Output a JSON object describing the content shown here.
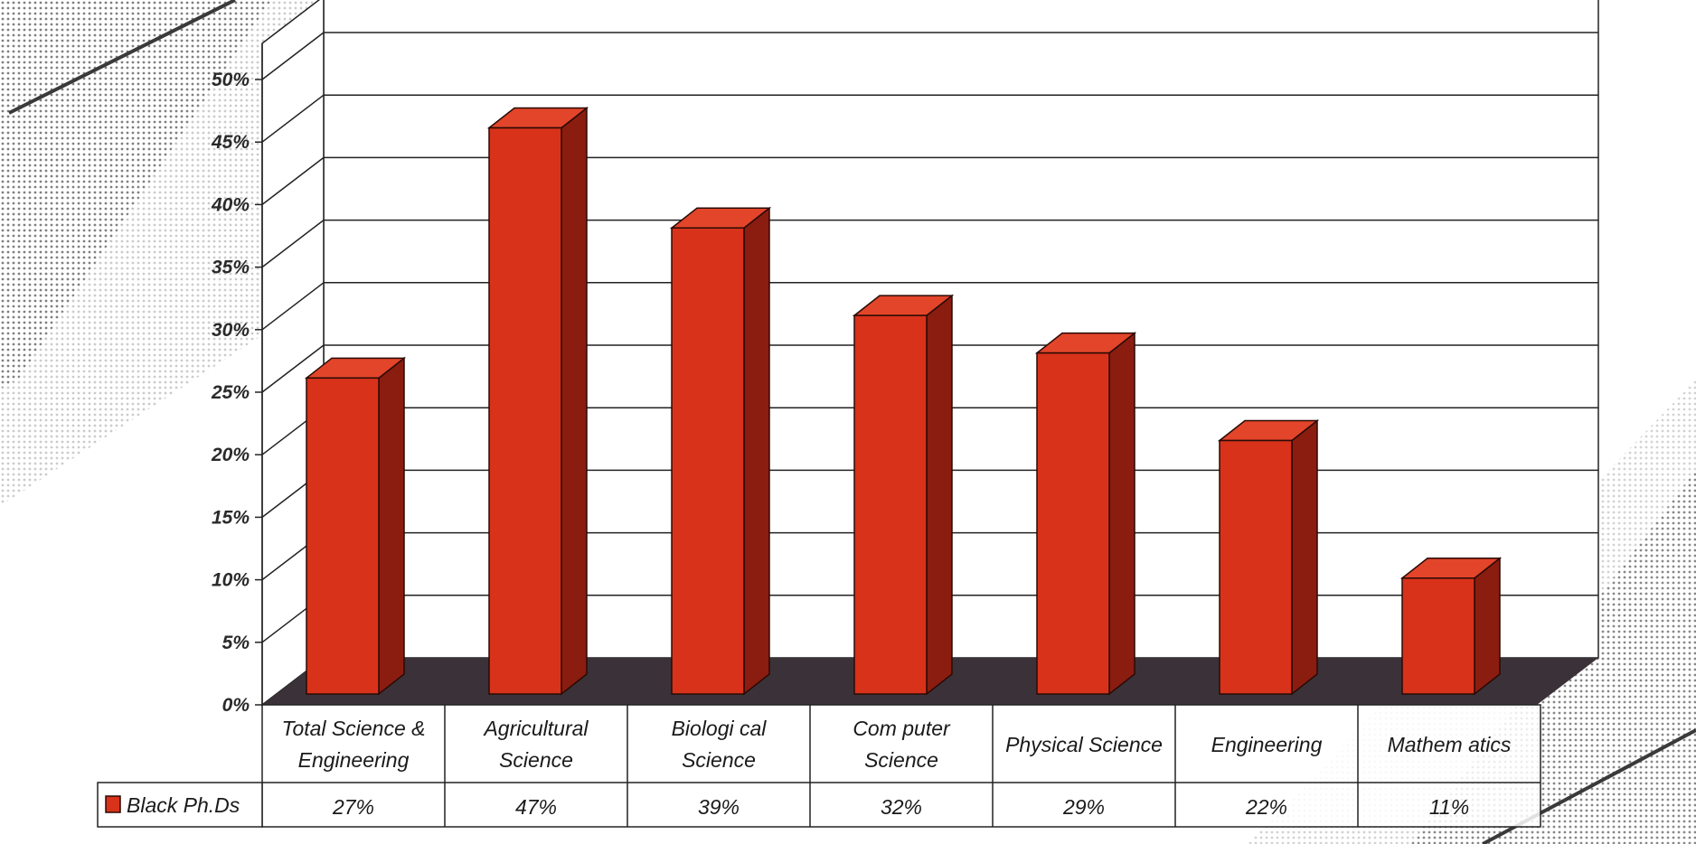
{
  "chart_data": {
    "type": "bar",
    "categories": [
      [
        "Total Science &",
        "Engineering"
      ],
      [
        "Agricultural",
        "Science"
      ],
      [
        "Biologi cal",
        "Science"
      ],
      [
        "Com puter",
        "Science"
      ],
      [
        "Physical Science"
      ],
      [
        "Engineering"
      ],
      [
        "Mathem atics"
      ]
    ],
    "series": [
      {
        "name": "Black Ph.Ds",
        "values": [
          27,
          47,
          39,
          32,
          29,
          22,
          11
        ]
      }
    ],
    "data_labels": [
      "27%",
      "47%",
      "39%",
      "32%",
      "29%",
      "22%",
      "11%"
    ],
    "y_ticks": [
      "0%",
      "5%",
      "10%",
      "15%",
      "20%",
      "25%",
      "30%",
      "35%",
      "40%",
      "45%",
      "50%"
    ],
    "ylim": [
      0,
      50
    ],
    "grid": true,
    "legend": "bottom-left data table",
    "colors": {
      "bar_front": "#d8321a",
      "bar_side": "#8a1d10",
      "bar_top": "#e2452a",
      "floor": "#3a3238"
    }
  }
}
